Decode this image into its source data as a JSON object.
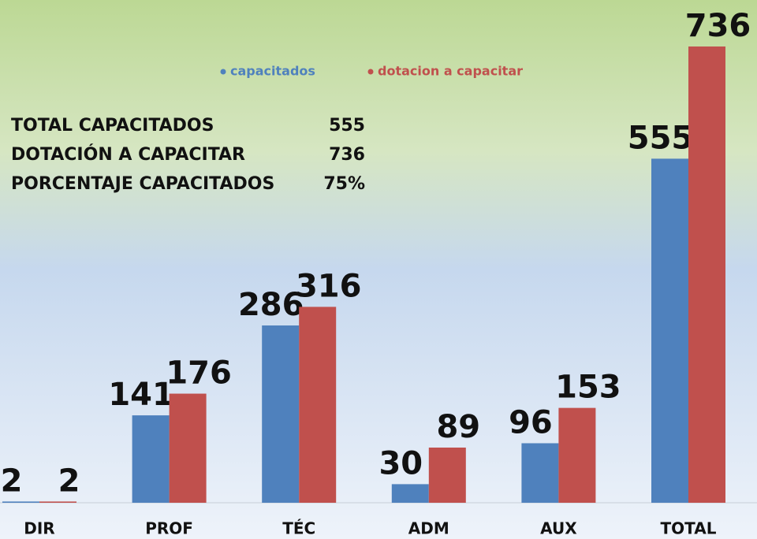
{
  "chart_data": {
    "type": "bar",
    "categories": [
      "DIR",
      "PROF",
      "TÉC",
      "ADM",
      "AUX",
      "TOTAL"
    ],
    "series": [
      {
        "name": "capacitados",
        "color": "#4f81bd",
        "values": [
          2,
          141,
          286,
          30,
          96,
          555
        ]
      },
      {
        "name": "dotacion  a capacitar",
        "color": "#c0504d",
        "values": [
          2,
          176,
          316,
          89,
          153,
          736
        ]
      }
    ],
    "annotations": [
      {
        "label": "TOTAL CAPACITADOS",
        "value": "555"
      },
      {
        "label": "DOTACIÓN A CAPACITAR",
        "value": "736"
      },
      {
        "label": "PORCENTAJE CAPACITADOS",
        "value": "75%"
      }
    ],
    "legend": "top"
  }
}
